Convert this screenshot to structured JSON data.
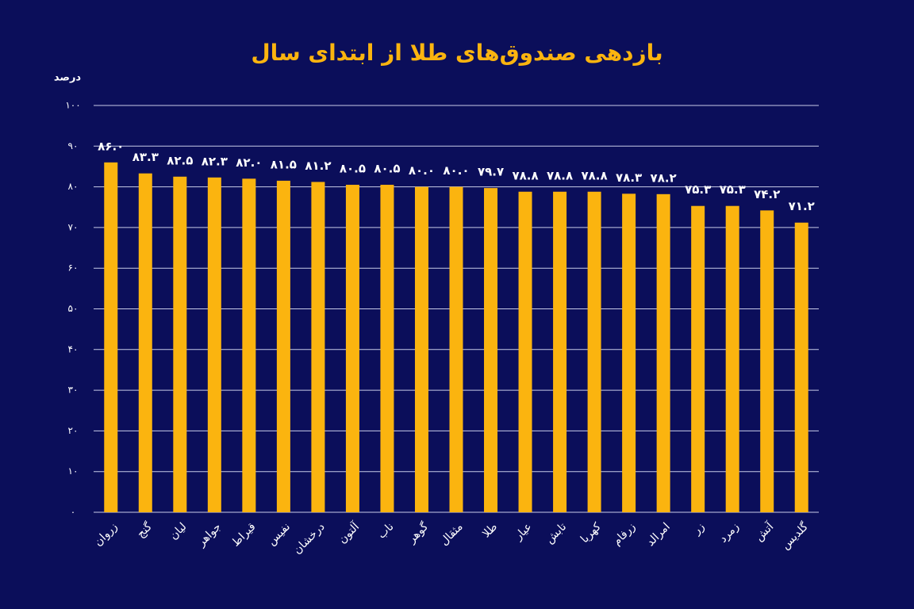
{
  "chart_data": {
    "type": "bar",
    "title": "بازدهی صندوق‌های طلا از ابتدای سال",
    "y_label": "درصد",
    "categories": [
      "زروان",
      "گنج",
      "لیان",
      "جواهر",
      "قیراط",
      "نفیس",
      "درخشان",
      "آلتون",
      "ناب",
      "گوهر",
      "مثقال",
      "طلا",
      "عیار",
      "تابش",
      "کهربا",
      "زرفام",
      "امرالد",
      "زر",
      "زمرد",
      "آتش",
      "گلدیس"
    ],
    "values": [
      86.0,
      83.3,
      82.5,
      82.3,
      82.0,
      81.5,
      81.2,
      80.5,
      80.5,
      80.0,
      80.0,
      79.7,
      78.8,
      78.8,
      78.8,
      78.3,
      78.2,
      75.3,
      75.3,
      74.2,
      71.2
    ],
    "value_labels": [
      "۸۶.۰",
      "۸۳.۳",
      "۸۲.۵",
      "۸۲.۳",
      "۸۲.۰",
      "۸۱.۵",
      "۸۱.۲",
      "۸۰.۵",
      "۸۰.۵",
      "۸۰.۰",
      "۸۰.۰",
      "۷۹.۷",
      "۷۸.۸",
      "۷۸.۸",
      "۷۸.۸",
      "۷۸.۳",
      "۷۸.۲",
      "۷۵.۳",
      "۷۵.۳",
      "۷۴.۲",
      "۷۱.۲"
    ],
    "color": "#fbb40f",
    "ylim": [
      0,
      100
    ],
    "yticks": [
      {
        "value": 0,
        "label": "۰"
      },
      {
        "value": 10,
        "label": "۱۰"
      },
      {
        "value": 20,
        "label": "۲۰"
      },
      {
        "value": 30,
        "label": "۳۰"
      },
      {
        "value": 40,
        "label": "۴۰"
      },
      {
        "value": 50,
        "label": "۵۰"
      },
      {
        "value": 60,
        "label": "۶۰"
      },
      {
        "value": 70,
        "label": "۷۰"
      },
      {
        "value": 80,
        "label": "۸۰"
      },
      {
        "value": 90,
        "label": "۹۰"
      },
      {
        "value": 100,
        "label": "۱۰۰"
      }
    ],
    "grid": true
  }
}
